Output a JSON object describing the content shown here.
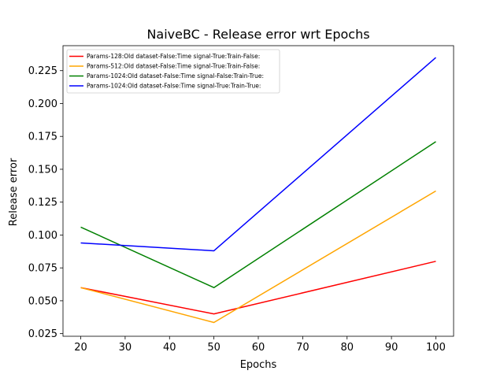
{
  "chart_data": {
    "type": "line",
    "title": "NaiveBC - Release error wrt Epochs",
    "xlabel": "Epochs",
    "ylabel": "Release error",
    "x": [
      20,
      50,
      100
    ],
    "xlim": [
      16,
      104
    ],
    "ylim": [
      0.023,
      0.244
    ],
    "xticks": [
      20,
      30,
      40,
      50,
      60,
      70,
      80,
      90,
      100
    ],
    "yticks": [
      0.025,
      0.05,
      0.075,
      0.1,
      0.125,
      0.15,
      0.175,
      0.2,
      0.225
    ],
    "ytick_labels": [
      "0.025",
      "0.050",
      "0.075",
      "0.100",
      "0.125",
      "0.150",
      "0.175",
      "0.200",
      "0.225"
    ],
    "grid": false,
    "legend_position": "upper-left",
    "series": [
      {
        "name": "Params-128:Old dataset-False:Time signal-True:Train-False:",
        "color": "#ff0000",
        "values": [
          0.06,
          0.04,
          0.08
        ]
      },
      {
        "name": "Params-512:Old dataset-False:Time signal-True:Train-False:",
        "color": "#ffa500",
        "values": [
          0.06,
          0.0335,
          0.1335
        ]
      },
      {
        "name": "Params-1024:Old dataset-False:Time signal-False:Train-True:",
        "color": "#008000",
        "values": [
          0.106,
          0.06,
          0.171
        ]
      },
      {
        "name": "Params-1024:Old dataset-False:Time signal-True:Train-True:",
        "color": "#0000ff",
        "values": [
          0.094,
          0.088,
          0.235
        ]
      }
    ]
  }
}
